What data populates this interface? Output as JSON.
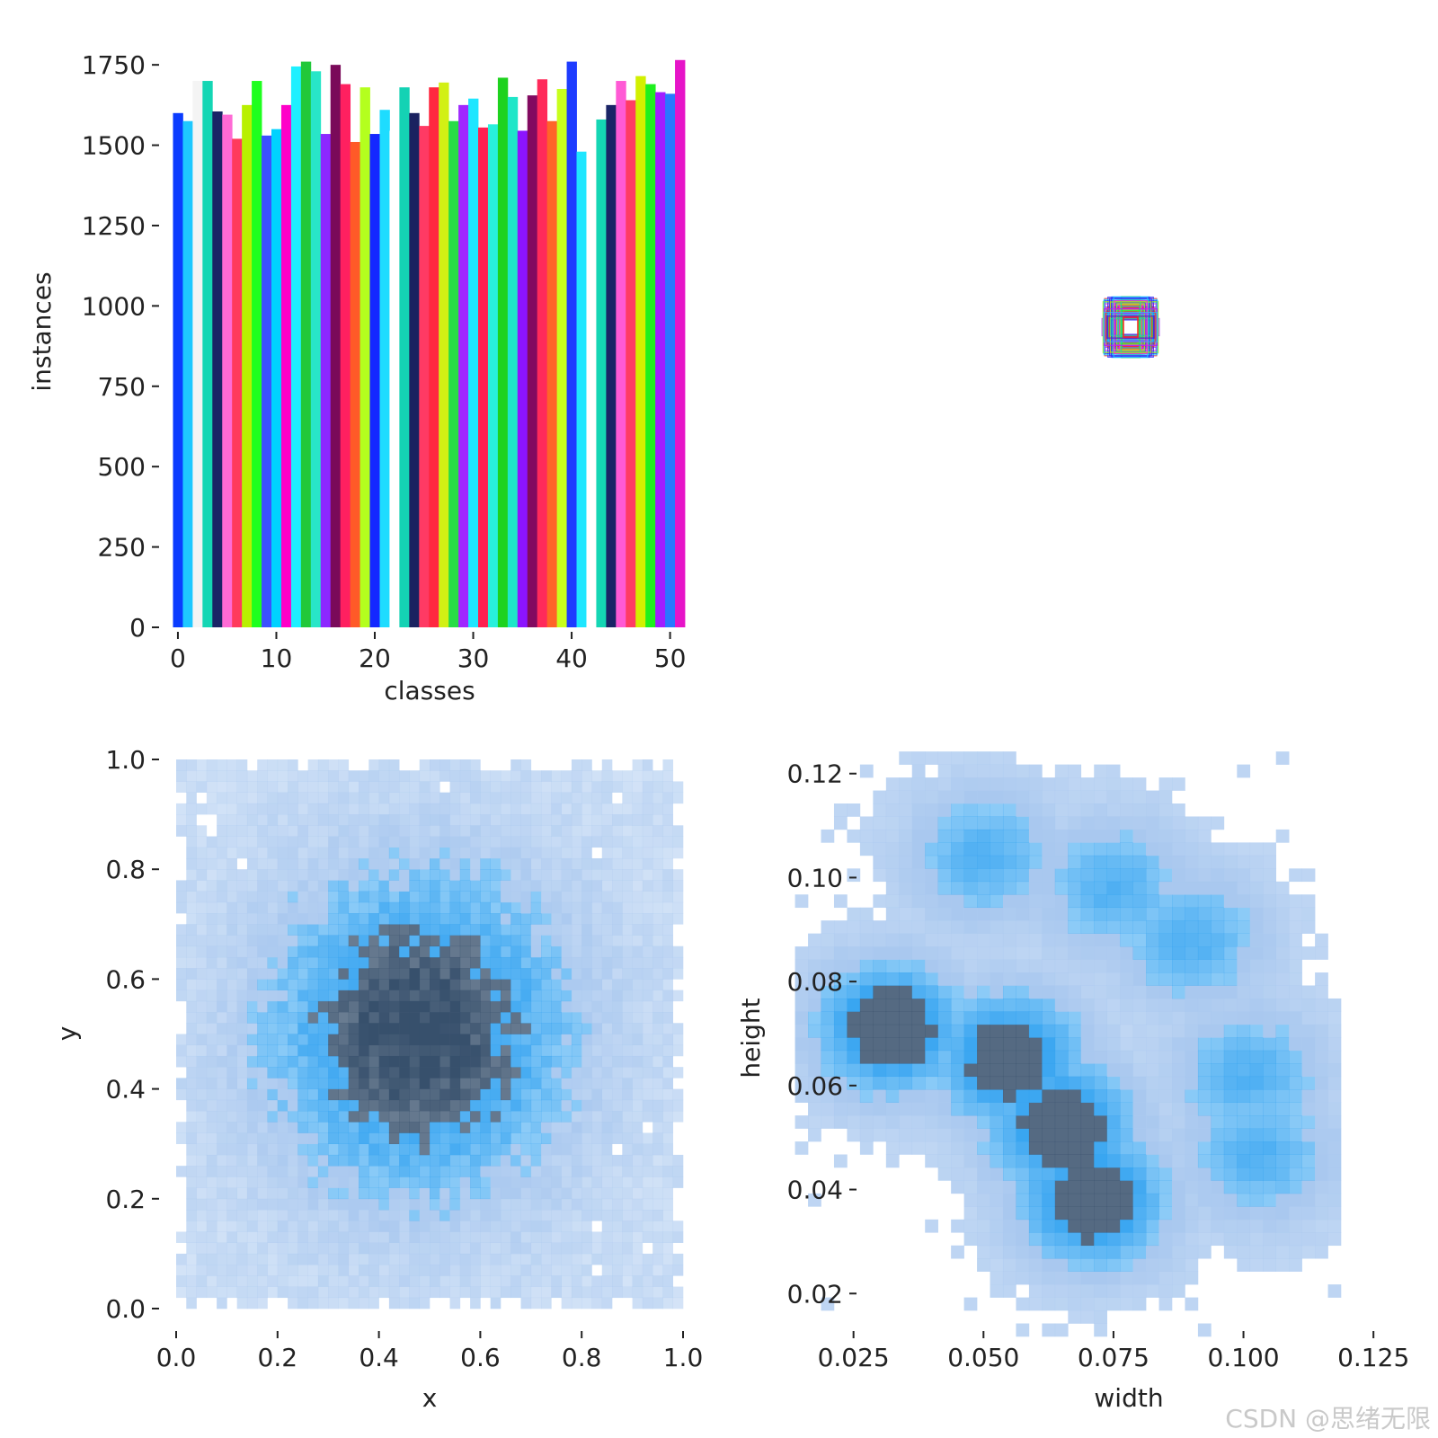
{
  "watermark": "CSDN @思绪无限",
  "colors": {
    "hist_light": "#a9c8ef",
    "hist_mid": "#2da0f0",
    "hist_dark": "#37506c",
    "axis": "#222222"
  },
  "chart_data": [
    {
      "id": "classes-bar",
      "type": "bar",
      "xlabel": "classes",
      "ylabel": "instances",
      "xlim": [
        -1,
        51.5
      ],
      "ylim": [
        0,
        1770
      ],
      "x_ticks": [
        "0",
        "10",
        "20",
        "30",
        "40",
        "50"
      ],
      "x_tick_values": [
        0,
        10,
        20,
        30,
        40,
        50
      ],
      "y_ticks": [
        "0",
        "250",
        "500",
        "750",
        "1000",
        "1250",
        "1500",
        "1750"
      ],
      "y_tick_values": [
        0,
        250,
        500,
        750,
        1000,
        1250,
        1500,
        1750
      ],
      "categories": [
        0,
        1,
        2,
        3,
        4,
        5,
        6,
        7,
        8,
        9,
        10,
        11,
        12,
        13,
        14,
        15,
        16,
        17,
        18,
        19,
        20,
        21,
        22,
        23,
        24,
        25,
        26,
        27,
        28,
        29,
        30,
        31,
        32,
        33,
        34,
        35,
        36,
        37,
        38,
        39,
        40,
        41,
        42,
        43,
        44,
        45,
        46,
        47,
        48,
        49,
        50,
        51
      ],
      "values": [
        1600,
        1575,
        1700,
        1700,
        1605,
        1595,
        1520,
        1625,
        1700,
        1530,
        1550,
        1625,
        1745,
        1760,
        1730,
        1535,
        1750,
        1690,
        1510,
        1680,
        1535,
        1610,
        1545,
        1680,
        1600,
        1560,
        1680,
        1695,
        1575,
        1625,
        1645,
        1555,
        1565,
        1710,
        1650,
        1545,
        1655,
        1705,
        1575,
        1675,
        1760,
        1480,
        1545,
        1580,
        1625,
        1700,
        1640,
        1715,
        1690,
        1665,
        1660,
        1765
      ],
      "bar_colors": [
        "#0a3cff",
        "#1ec8ff",
        "#f4f4f4",
        "#14d6b4",
        "#1a2466",
        "#ff6ad5",
        "#ff3a5c",
        "#b8f000",
        "#1eff1e",
        "#3c50ff",
        "#00d2ff",
        "#ff00c8",
        "#1ef0ff",
        "#22c83a",
        "#28e6c8",
        "#8c28ff",
        "#7a0a5a",
        "#ff2060",
        "#ff5a28",
        "#b4ff1e",
        "#1428ff",
        "#1edcff",
        "#ffffff",
        "#14d2b4",
        "#1a2260",
        "#ff3a64",
        "#ff2840",
        "#d2f014",
        "#28dc46",
        "#a028ff",
        "#1ee6ff",
        "#ff2050",
        "#28f0dc",
        "#1ed21e",
        "#1ee6c8",
        "#8c14ff",
        "#820a60",
        "#ff2a5a",
        "#ff6428",
        "#c8ff1e",
        "#1e3cff",
        "#1ee6ff",
        "#ffffff",
        "#14d6b4",
        "#1a2466",
        "#ff5ad5",
        "#ff3c64",
        "#d2f000",
        "#1ef01e",
        "#a01eff",
        "#2878ff",
        "#e614c8"
      ]
    },
    {
      "id": "boxes-overlay",
      "type": "other",
      "description": "overlay of normalized anchor boxes",
      "box_colors": [
        "#2828ff",
        "#1ec8ff",
        "#28e646",
        "#ff2828",
        "#b4f000",
        "#14d6b4",
        "#a028ff",
        "#ff28c8"
      ]
    },
    {
      "id": "xy-hist",
      "type": "heatmap",
      "xlabel": "x",
      "ylabel": "y",
      "xlim": [
        0,
        1
      ],
      "ylim": [
        0,
        1
      ],
      "x_ticks": [
        "0.0",
        "0.2",
        "0.4",
        "0.6",
        "0.8",
        "1.0"
      ],
      "x_tick_values": [
        0,
        0.2,
        0.4,
        0.6,
        0.8,
        1.0
      ],
      "y_ticks": [
        "0.0",
        "0.2",
        "0.4",
        "0.6",
        "0.8",
        "1.0"
      ],
      "y_tick_values": [
        0,
        0.2,
        0.4,
        0.6,
        0.8,
        1.0
      ],
      "bins": 50,
      "center": [
        0.48,
        0.5
      ],
      "density": "gaussian peak near (0.48, 0.50), light at edges"
    },
    {
      "id": "wh-hist",
      "type": "heatmap",
      "xlabel": "width",
      "ylabel": "height",
      "xlim": [
        0.0095,
        0.1305
      ],
      "ylim": [
        0.0095,
        0.1305
      ],
      "x_ticks": [
        "0.025",
        "0.050",
        "0.075",
        "0.100",
        "0.125"
      ],
      "x_tick_values": [
        0.025,
        0.05,
        0.075,
        0.1,
        0.125
      ],
      "y_ticks": [
        "0.02",
        "0.04",
        "0.06",
        "0.08",
        "0.10",
        "0.12"
      ],
      "y_tick_values": [
        0.02,
        0.04,
        0.06,
        0.08,
        0.1,
        0.12
      ],
      "clusters": [
        {
          "w": 0.032,
          "h": 0.071,
          "level": "dark"
        },
        {
          "w": 0.055,
          "h": 0.065,
          "level": "dark"
        },
        {
          "w": 0.065,
          "h": 0.052,
          "level": "dark"
        },
        {
          "w": 0.071,
          "h": 0.038,
          "level": "dark"
        },
        {
          "w": 0.05,
          "h": 0.104,
          "level": "mid"
        },
        {
          "w": 0.075,
          "h": 0.098,
          "level": "mid"
        },
        {
          "w": 0.09,
          "h": 0.088,
          "level": "mid"
        },
        {
          "w": 0.101,
          "h": 0.062,
          "level": "mid"
        },
        {
          "w": 0.103,
          "h": 0.047,
          "level": "mid"
        }
      ]
    }
  ]
}
